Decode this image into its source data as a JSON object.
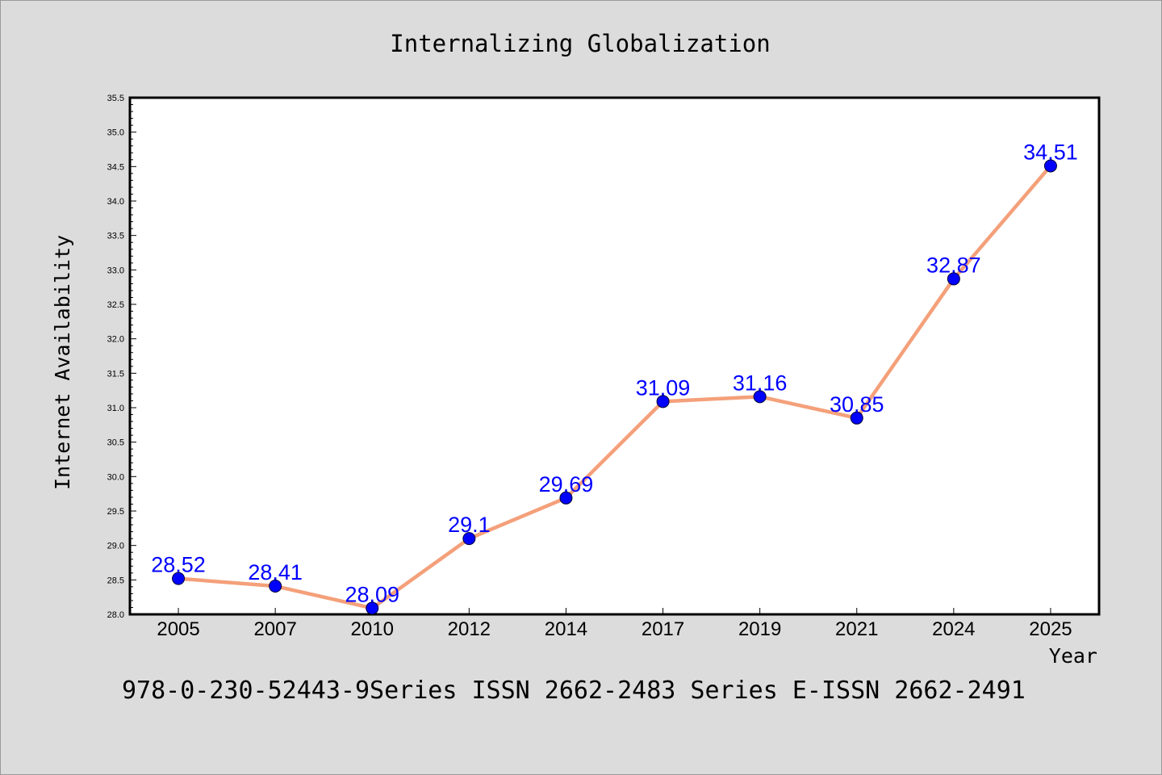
{
  "chart_data": {
    "type": "line",
    "title": "Internalizing Globalization",
    "xlabel": "Year",
    "ylabel": "Internet Availability",
    "categories": [
      "2005",
      "2007",
      "2010",
      "2012",
      "2014",
      "2017",
      "2019",
      "2021",
      "2024",
      "2025"
    ],
    "series": [
      {
        "values": [
          28.52,
          28.41,
          28.09,
          29.1,
          29.69,
          31.09,
          31.16,
          30.85,
          32.87,
          34.51
        ],
        "line_color": "#f4a07a",
        "marker_color": "#0000ff"
      }
    ],
    "data_labels": [
      "28.52",
      "28.41",
      "28.09",
      "29.1",
      "29.69",
      "31.09",
      "31.16",
      "30.85",
      "32.87",
      "34.51"
    ],
    "yticks": [
      "28.0",
      "28.5",
      "29.0",
      "29.5",
      "30.0",
      "30.5",
      "31.0",
      "31.5",
      "32.0",
      "32.5",
      "33.0",
      "33.5",
      "34.0",
      "34.5",
      "35.0",
      "35.5"
    ],
    "ylim": [
      28.0,
      35.5
    ],
    "grid": false,
    "legend": "none"
  },
  "footer_text": "978-0-230-52443-9Series ISSN 2662-2483 Series E-ISSN 2662-2491",
  "colors": {
    "background": "#dcdcdc",
    "plot_background": "#ffffff",
    "line": "#f4a07a",
    "marker": "#0000ff",
    "data_label": "#0000ff"
  }
}
